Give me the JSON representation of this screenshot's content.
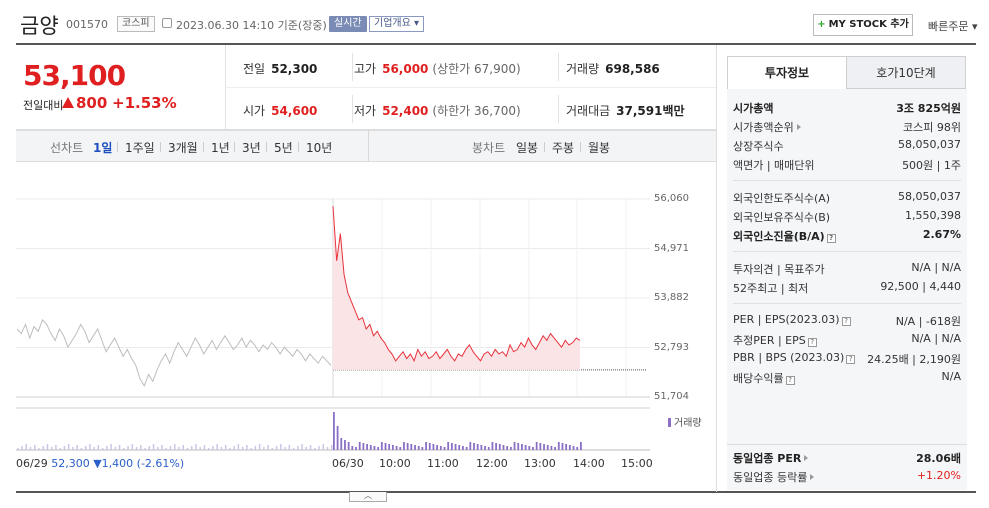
{
  "header": {
    "name": "금양",
    "code": "001570",
    "market": "코스피",
    "datetime": "2023.06.30 14:10 기준(장중)",
    "realtime": "실시간",
    "company_overview": "기업개요 ▾",
    "mystock_label": "MY STOCK 추가",
    "mystock_plus": "+",
    "quick_order": "빠른주문 ▾"
  },
  "price": {
    "current": "53,100",
    "change_label": "전일대비",
    "change": "800",
    "change_pct": "+1.53%",
    "change_direction": "up"
  },
  "summary": {
    "prev_close_label": "전일",
    "prev_close": "52,300",
    "open_label": "시가",
    "open": "54,600",
    "high_label": "고가",
    "high": "56,000",
    "upper_limit": "(상한가 67,900)",
    "low_label": "저가",
    "low": "52,400",
    "lower_limit": "(하한가 36,700)",
    "volume_label": "거래량",
    "volume": "698,586",
    "amount_label": "거래대금",
    "amount": "37,591",
    "amount_unit": "백만"
  },
  "period_bar": {
    "line_label": "선차트",
    "line_options": [
      "1일",
      "1주일",
      "3개월",
      "1년",
      "3년",
      "5년",
      "10년"
    ],
    "active_line": "1일",
    "candle_label": "봉차트",
    "candle_options": [
      "일봉",
      "주봉",
      "월봉"
    ]
  },
  "chart": {
    "y_ticks": [
      "56,060",
      "54,971",
      "53,882",
      "52,793",
      "51,704"
    ],
    "x_ticks": [
      "06/30",
      "10:00",
      "11:00",
      "12:00",
      "13:00",
      "14:00",
      "15:00"
    ],
    "prev_day_x": "06/29",
    "prev_day_close": "52,300",
    "prev_day_change": "▼1,400",
    "prev_day_pct": "(-2.61%)",
    "volume_legend": "거래량",
    "colors": {
      "today": "#e8323c",
      "today_fill": "#fbe4e6",
      "prev": "#bdbdbd",
      "volume_today": "#8a6fc4",
      "volume_prev": "#cfc3e6"
    }
  },
  "chart_data": {
    "type": "line",
    "ylim": [
      51704,
      56060
    ],
    "y_ticks": [
      56060,
      54971,
      53882,
      52793,
      51704
    ],
    "prev_close": 52300,
    "series": [
      {
        "values": [
          53200,
          53100,
          53300,
          53000,
          53250,
          53150,
          53400,
          53300,
          53100,
          52950,
          53200,
          53050,
          52800,
          52950,
          53100,
          53300,
          53150,
          52900,
          53050,
          53200,
          52950,
          52700,
          52850,
          53000,
          52800,
          52600,
          52750,
          52550,
          52400,
          52100,
          51950,
          52200,
          52050,
          52300,
          52500,
          52650,
          52450,
          52700,
          52900,
          52750,
          52600,
          52800,
          53000,
          52850,
          52650,
          52800,
          52950,
          52750,
          52900,
          53050,
          52900,
          52750,
          52850,
          53000,
          52800,
          52950,
          52850,
          52700,
          52850,
          52750,
          52900,
          52800,
          52650,
          52800,
          52700,
          52600,
          52750,
          52650,
          52500,
          52650,
          52550,
          52450,
          52600,
          52500,
          52400
        ]
      },
      {
        "values": [
          55900,
          54700,
          55300,
          54400,
          54000,
          53800,
          53600,
          53400,
          53450,
          53200,
          53300,
          53050,
          53150,
          53000,
          52900,
          52750,
          52650,
          52500,
          52600,
          52700,
          52550,
          52650,
          52500,
          52750,
          52600,
          52700,
          52550,
          52600,
          52700,
          52550,
          52650,
          52750,
          52600,
          52500,
          52650,
          52600,
          52750,
          52850,
          52700,
          52600,
          52500,
          52650,
          52700,
          52600,
          52750,
          52650,
          52700,
          52600,
          52850,
          52700,
          52750,
          52900,
          52800,
          53000,
          52850,
          52750,
          52900,
          53050,
          52950,
          53100,
          53000,
          52900,
          52800,
          52950,
          52850,
          52900,
          53000,
          52950
        ]
      }
    ]
  },
  "right_panel": {
    "tabs": [
      "투자정보",
      "호가10단계"
    ],
    "market_cap_label": "시가총액",
    "market_cap": "3조 825억원",
    "cap_rank_label": "시가총액순위",
    "cap_rank": "코스피 98위",
    "shares_label": "상장주식수",
    "shares": "58,050,037",
    "par_label": "액면가 | 매매단위",
    "par": "500원 | 1주",
    "foreign_limit_label": "외국인한도주식수(A)",
    "foreign_limit": "58,050,037",
    "foreign_hold_label": "외국인보유주식수(B)",
    "foreign_hold": "1,550,398",
    "foreign_ratio_label": "외국인소진율(B/A)",
    "foreign_ratio": "2.67%",
    "opinion_label": "투자의견 | 목표주가",
    "opinion": "N/A | N/A",
    "range_label": "52주최고 | 최저",
    "range": "92,500 | 4,440",
    "per_label": "PER | EPS(2023.03)",
    "per": "N/A | -618원",
    "est_per_label": "추정PER | EPS",
    "est_per": "N/A | N/A",
    "pbr_label": "PBR | BPS (2023.03)",
    "pbr": "24.25배 | 2,190원",
    "div_label": "배당수익률",
    "div": "N/A",
    "sector_per_label": "동일업종 PER",
    "sector_per": "28.06배",
    "sector_chg_label": "동일업종 등락률",
    "sector_chg": "+1.20%",
    "q_icon": "?"
  }
}
